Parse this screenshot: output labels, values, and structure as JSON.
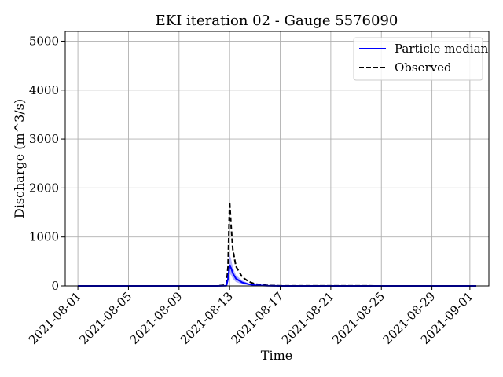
{
  "chart_data": {
    "type": "line",
    "title": "EKI iteration 02 - Gauge 5576090",
    "xlabel": "Time",
    "ylabel": "Discharge (m^3/s)",
    "x_start": "2021-08-01",
    "x_end": "2021-09-01",
    "xlim": [
      "2021-07-31T00:00",
      "2021-09-02T12:00"
    ],
    "ylim": [
      0,
      5200
    ],
    "x_ticks": [
      "2021-08-01",
      "2021-08-05",
      "2021-08-09",
      "2021-08-13",
      "2021-08-17",
      "2021-08-21",
      "2021-08-25",
      "2021-08-29",
      "2021-09-01"
    ],
    "y_ticks": [
      0,
      1000,
      2000,
      3000,
      4000,
      5000
    ],
    "grid": true,
    "legend_position": "top-right",
    "colors": {
      "median": "#0000ff",
      "band": "#8080ff",
      "observed": "#000000",
      "grid": "#b0b0b0"
    },
    "series": [
      {
        "name": "Particle median",
        "style": "solid",
        "points": [
          [
            "2021-08-01T00:00",
            0
          ],
          [
            "2021-08-12T00:00",
            0
          ],
          [
            "2021-08-12T18:00",
            5
          ],
          [
            "2021-08-12T21:00",
            150
          ],
          [
            "2021-08-13T00:00",
            420
          ],
          [
            "2021-08-13T03:00",
            360
          ],
          [
            "2021-08-13T06:00",
            260
          ],
          [
            "2021-08-13T12:00",
            150
          ],
          [
            "2021-08-14T00:00",
            70
          ],
          [
            "2021-08-14T12:00",
            35
          ],
          [
            "2021-08-15T00:00",
            15
          ],
          [
            "2021-08-16T00:00",
            4
          ],
          [
            "2021-08-17T00:00",
            1
          ],
          [
            "2021-09-01T12:00",
            0
          ]
        ]
      },
      {
        "name": "Observed",
        "style": "dashed",
        "points": [
          [
            "2021-08-01T00:00",
            0
          ],
          [
            "2021-08-12T00:00",
            0
          ],
          [
            "2021-08-12T18:00",
            20
          ],
          [
            "2021-08-12T21:00",
            400
          ],
          [
            "2021-08-13T00:00",
            1720
          ],
          [
            "2021-08-13T03:00",
            1200
          ],
          [
            "2021-08-13T06:00",
            750
          ],
          [
            "2021-08-13T12:00",
            400
          ],
          [
            "2021-08-14T00:00",
            180
          ],
          [
            "2021-08-14T12:00",
            90
          ],
          [
            "2021-08-15T00:00",
            40
          ],
          [
            "2021-08-16T00:00",
            10
          ],
          [
            "2021-08-17T00:00",
            2
          ],
          [
            "2021-09-01T12:00",
            0
          ]
        ]
      }
    ],
    "band": {
      "points": [
        [
          "2021-08-01T00:00",
          0,
          0
        ],
        [
          "2021-08-12T00:00",
          0,
          0
        ],
        [
          "2021-08-12T18:00",
          2,
          10
        ],
        [
          "2021-08-12T21:00",
          80,
          250
        ],
        [
          "2021-08-13T00:00",
          250,
          650
        ],
        [
          "2021-08-13T03:00",
          220,
          540
        ],
        [
          "2021-08-13T06:00",
          150,
          380
        ],
        [
          "2021-08-13T12:00",
          80,
          220
        ],
        [
          "2021-08-14T00:00",
          35,
          110
        ],
        [
          "2021-08-14T12:00",
          15,
          55
        ],
        [
          "2021-08-15T00:00",
          5,
          25
        ],
        [
          "2021-08-16T00:00",
          1,
          8
        ],
        [
          "2021-08-17T00:00",
          0,
          2
        ],
        [
          "2021-09-01T12:00",
          0,
          0
        ]
      ]
    }
  }
}
